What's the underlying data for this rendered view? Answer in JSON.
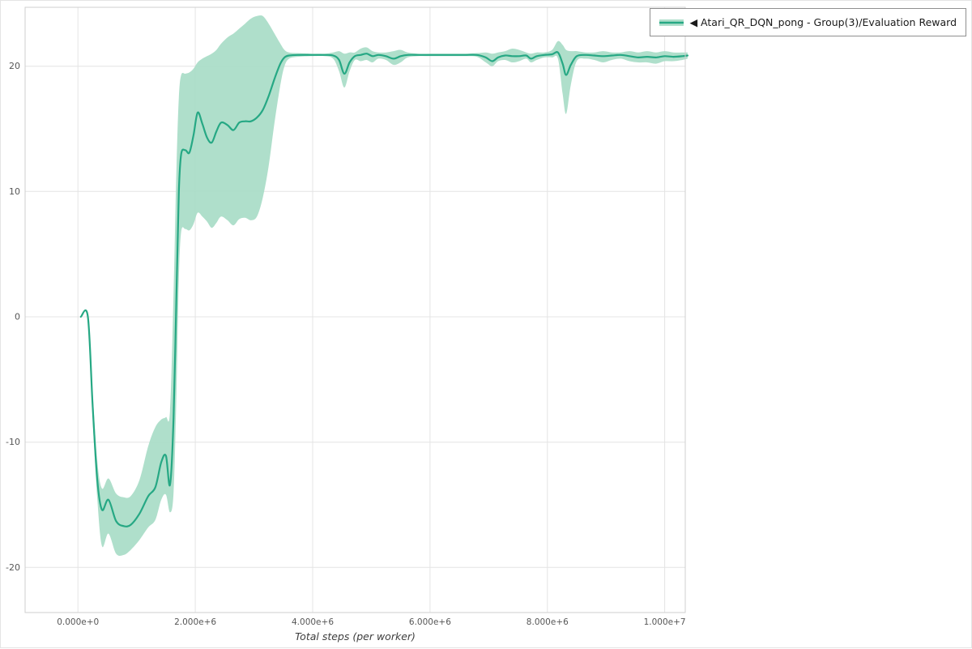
{
  "legend": {
    "items": [
      {
        "label": "◀ Atari_QR_DQN_pong - Group(3)/Evaluation Reward"
      }
    ]
  },
  "chart_data": {
    "type": "line",
    "title": "",
    "xlabel": "Total steps (per worker)",
    "ylabel": "",
    "grid": true,
    "legend_position": "top-right",
    "xlim": [
      -900000,
      10350000
    ],
    "ylim": [
      -23.6,
      24.7
    ],
    "grid_color": "#e4e4e4",
    "spine_color": "#cfcfcf",
    "tick_color": "#565656",
    "xticks": [
      {
        "value": 0,
        "label": "0.000e+0"
      },
      {
        "value": 2000000,
        "label": "2.000e+6"
      },
      {
        "value": 4000000,
        "label": "4.000e+6"
      },
      {
        "value": 6000000,
        "label": "6.000e+6"
      },
      {
        "value": 8000000,
        "label": "8.000e+6"
      },
      {
        "value": 10000000,
        "label": "1.000e+7"
      }
    ],
    "yticks": [
      {
        "value": -20,
        "label": "-20"
      },
      {
        "value": -10,
        "label": "-10"
      },
      {
        "value": 0,
        "label": "0"
      },
      {
        "value": 10,
        "label": "10"
      },
      {
        "value": 20,
        "label": "20"
      }
    ],
    "series": [
      {
        "name": "Atari_QR_DQN_pong - Group(3)/Evaluation Reward",
        "color": "#26a884",
        "band_color": "#a6dbc5",
        "band_opacity": 0.9,
        "columns": [
          "total_steps",
          "mean_reward",
          "band_low",
          "band_high"
        ],
        "points": [
          [
            50000,
            0,
            0,
            0
          ],
          [
            170000,
            0,
            0,
            0
          ],
          [
            250000,
            -7,
            -8,
            -6
          ],
          [
            330000,
            -13,
            -14.5,
            -11.5
          ],
          [
            410000,
            -15.4,
            -18.3,
            -13.7
          ],
          [
            520000,
            -14.6,
            -17.3,
            -12.9
          ],
          [
            650000,
            -16.3,
            -18.9,
            -14.1
          ],
          [
            780000,
            -16.7,
            -19,
            -14.4
          ],
          [
            900000,
            -16.6,
            -18.6,
            -14.3
          ],
          [
            1050000,
            -15.7,
            -17.8,
            -13
          ],
          [
            1200000,
            -14.3,
            -16.8,
            -10.3
          ],
          [
            1320000,
            -13.6,
            -16.2,
            -8.8
          ],
          [
            1420000,
            -11.6,
            -14.6,
            -8.2
          ],
          [
            1500000,
            -11.1,
            -14.2,
            -8
          ],
          [
            1570000,
            -13.4,
            -15.6,
            -7.5
          ],
          [
            1630000,
            -8,
            -14,
            2
          ],
          [
            1680000,
            2,
            -6,
            12
          ],
          [
            1720000,
            10,
            3,
            17.5
          ],
          [
            1760000,
            13,
            6.8,
            19.3
          ],
          [
            1830000,
            13.3,
            7,
            19.4
          ],
          [
            1900000,
            13.1,
            6.9,
            19.5
          ],
          [
            1970000,
            14.5,
            7.4,
            19.8
          ],
          [
            2040000,
            16.3,
            8.3,
            20.3
          ],
          [
            2120000,
            15.4,
            8,
            20.6
          ],
          [
            2200000,
            14.3,
            7.6,
            20.8
          ],
          [
            2280000,
            13.9,
            7.1,
            21
          ],
          [
            2360000,
            14.8,
            7.5,
            21.3
          ],
          [
            2440000,
            15.5,
            8,
            21.8
          ],
          [
            2550000,
            15.3,
            7.7,
            22.3
          ],
          [
            2650000,
            14.9,
            7.3,
            22.6
          ],
          [
            2750000,
            15.5,
            7.8,
            23
          ],
          [
            2850000,
            15.6,
            7.9,
            23.4
          ],
          [
            2950000,
            15.6,
            7.7,
            23.8
          ],
          [
            3050000,
            15.9,
            8,
            24
          ],
          [
            3150000,
            16.5,
            9.5,
            24
          ],
          [
            3250000,
            17.6,
            12,
            23.4
          ],
          [
            3350000,
            19,
            15.5,
            22.6
          ],
          [
            3450000,
            20.2,
            18.5,
            21.8
          ],
          [
            3520000,
            20.7,
            20,
            21.3
          ],
          [
            3600000,
            20.85,
            20.6,
            21.1
          ],
          [
            3750000,
            20.9,
            20.75,
            21.05
          ],
          [
            4000000,
            20.9,
            20.8,
            21
          ],
          [
            4200000,
            20.9,
            20.8,
            21
          ],
          [
            4350000,
            20.85,
            20.6,
            21.1
          ],
          [
            4450000,
            20.5,
            19.6,
            21.2
          ],
          [
            4540000,
            19.4,
            18.3,
            21
          ],
          [
            4630000,
            20.3,
            19.6,
            21.1
          ],
          [
            4720000,
            20.8,
            20.5,
            21.1
          ],
          [
            4820000,
            20.9,
            20.4,
            21.4
          ],
          [
            4920000,
            21,
            20.5,
            21.5
          ],
          [
            5020000,
            20.8,
            20.3,
            21.2
          ],
          [
            5120000,
            20.9,
            20.6,
            21.1
          ],
          [
            5250000,
            20.8,
            20.5,
            21.1
          ],
          [
            5380000,
            20.6,
            20.1,
            21.2
          ],
          [
            5500000,
            20.8,
            20.3,
            21.3
          ],
          [
            5620000,
            20.9,
            20.7,
            21.1
          ],
          [
            5800000,
            20.9,
            20.8,
            21
          ],
          [
            6000000,
            20.9,
            20.8,
            21
          ],
          [
            6200000,
            20.9,
            20.8,
            21
          ],
          [
            6400000,
            20.9,
            20.8,
            21
          ],
          [
            6600000,
            20.9,
            20.8,
            21
          ],
          [
            6800000,
            20.9,
            20.75,
            21.05
          ],
          [
            6950000,
            20.7,
            20.3,
            21.1
          ],
          [
            7060000,
            20.4,
            20,
            21
          ],
          [
            7160000,
            20.7,
            20.4,
            21.1
          ],
          [
            7280000,
            20.85,
            20.5,
            21.2
          ],
          [
            7400000,
            20.8,
            20.3,
            21.4
          ],
          [
            7520000,
            20.8,
            20.4,
            21.3
          ],
          [
            7640000,
            20.85,
            20.6,
            21.1
          ],
          [
            7720000,
            20.6,
            20.3,
            21
          ],
          [
            7820000,
            20.8,
            20.5,
            21.1
          ],
          [
            7950000,
            20.9,
            20.7,
            21.1
          ],
          [
            8080000,
            20.95,
            20.7,
            21.3
          ],
          [
            8180000,
            21.1,
            20.6,
            22
          ],
          [
            8260000,
            20.2,
            17.8,
            21.7
          ],
          [
            8320000,
            19.3,
            16.2,
            21.3
          ],
          [
            8400000,
            20.1,
            18.5,
            21.2
          ],
          [
            8500000,
            20.8,
            20.4,
            21.2
          ],
          [
            8650000,
            20.9,
            20.6,
            21.1
          ],
          [
            8800000,
            20.85,
            20.5,
            21.1
          ],
          [
            8950000,
            20.8,
            20.3,
            21.2
          ],
          [
            9100000,
            20.85,
            20.5,
            21.1
          ],
          [
            9250000,
            20.9,
            20.6,
            21.1
          ],
          [
            9400000,
            20.8,
            20.4,
            21.2
          ],
          [
            9550000,
            20.7,
            20.3,
            21.1
          ],
          [
            9700000,
            20.75,
            20.3,
            21.2
          ],
          [
            9850000,
            20.7,
            20.2,
            21.1
          ],
          [
            10000000,
            20.8,
            20.4,
            21.2
          ],
          [
            10150000,
            20.75,
            20.4,
            21.1
          ],
          [
            10300000,
            20.8,
            20.5,
            21.1
          ],
          [
            10390000,
            20.85,
            20.6,
            21.1
          ]
        ]
      }
    ]
  }
}
